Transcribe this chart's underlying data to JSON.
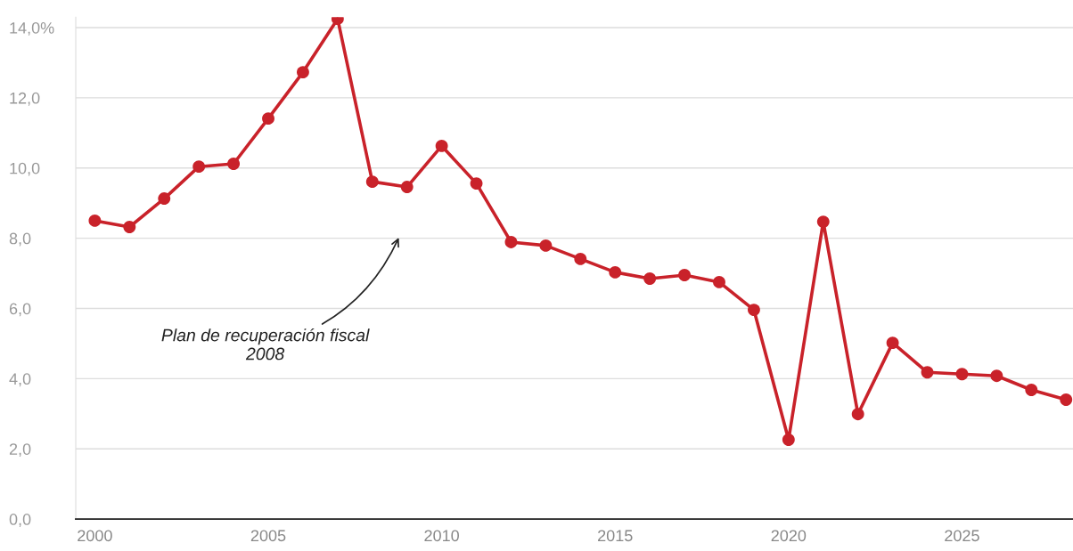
{
  "chart_data": {
    "type": "line",
    "x": [
      2000,
      2001,
      2002,
      2003,
      2004,
      2005,
      2006,
      2007,
      2008,
      2009,
      2010,
      2011,
      2012,
      2013,
      2014,
      2015,
      2016,
      2017,
      2018,
      2019,
      2020,
      2021,
      2022,
      2023,
      2024,
      2025,
      2026,
      2027,
      2028
    ],
    "series": [
      {
        "color": "#c9222a",
        "values": [
          8.5,
          8.32,
          9.13,
          10.04,
          10.12,
          11.41,
          12.73,
          14.25,
          9.61,
          9.46,
          10.63,
          9.56,
          7.89,
          7.79,
          7.41,
          7.03,
          6.85,
          6.95,
          6.75,
          5.96,
          2.26,
          8.47,
          2.99,
          5.02,
          4.18,
          4.13,
          4.08,
          3.68,
          3.4
        ]
      }
    ],
    "xlim": [
      1999.45,
      2028.2
    ],
    "xticks": [
      2000,
      2005,
      2010,
      2015,
      2020,
      2025
    ],
    "ylim": [
      0,
      14.3
    ],
    "yticks": [
      {
        "value": 0,
        "label": "0,0"
      },
      {
        "value": 2,
        "label": "2,0"
      },
      {
        "value": 4,
        "label": "4,0"
      },
      {
        "value": 6,
        "label": "6,0"
      },
      {
        "value": 8,
        "label": "8,0"
      },
      {
        "value": 10,
        "label": "10,0"
      },
      {
        "value": 12,
        "label": "12,0"
      },
      {
        "value": 14,
        "label": "14,0%"
      }
    ],
    "grid": "y",
    "marker": "circle",
    "line_style": "solid",
    "legend": false,
    "annotations": [
      "Plan de recuperación fiscal\n2008"
    ]
  }
}
